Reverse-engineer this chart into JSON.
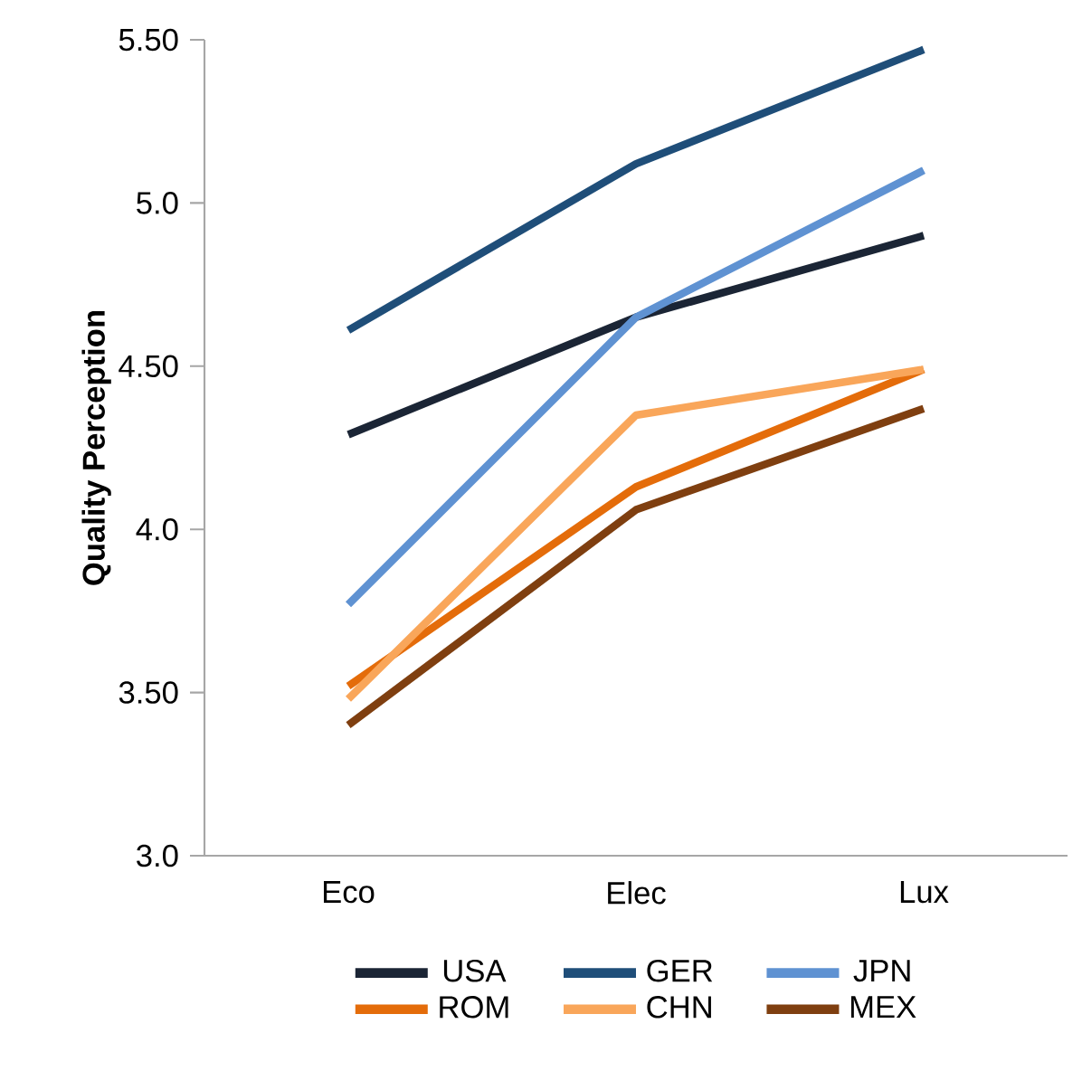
{
  "chart_data": {
    "type": "line",
    "ylabel": "Quality Perception",
    "categories": [
      "Eco",
      "Elec",
      "Lux"
    ],
    "series": [
      {
        "name": "USA",
        "color": "#1b2535",
        "values": [
          4.29,
          4.65,
          4.9
        ]
      },
      {
        "name": "GER",
        "color": "#1f4e79",
        "values": [
          4.61,
          5.12,
          5.47
        ]
      },
      {
        "name": "JPN",
        "color": "#5f92d2",
        "values": [
          3.77,
          4.65,
          5.1
        ]
      },
      {
        "name": "ROM",
        "color": "#e46c0a",
        "values": [
          3.52,
          4.13,
          4.49
        ]
      },
      {
        "name": "CHN",
        "color": "#f9a65a",
        "values": [
          3.48,
          4.35,
          4.49
        ]
      },
      {
        "name": "MEX",
        "color": "#7f3f10",
        "values": [
          3.4,
          4.06,
          4.37
        ]
      }
    ],
    "ylim": [
      3,
      5.5
    ],
    "yticks": [
      {
        "value": 3,
        "label": "3.0"
      },
      {
        "value": 3.5,
        "label": "3.50"
      },
      {
        "value": 4,
        "label": "4.0"
      },
      {
        "value": 4.5,
        "label": "4.50"
      },
      {
        "value": 5,
        "label": "5.0"
      },
      {
        "value": 5.5,
        "label": "5.50"
      }
    ],
    "grid": false,
    "legend": "bottom",
    "marker": "none",
    "line_style": "solid"
  }
}
